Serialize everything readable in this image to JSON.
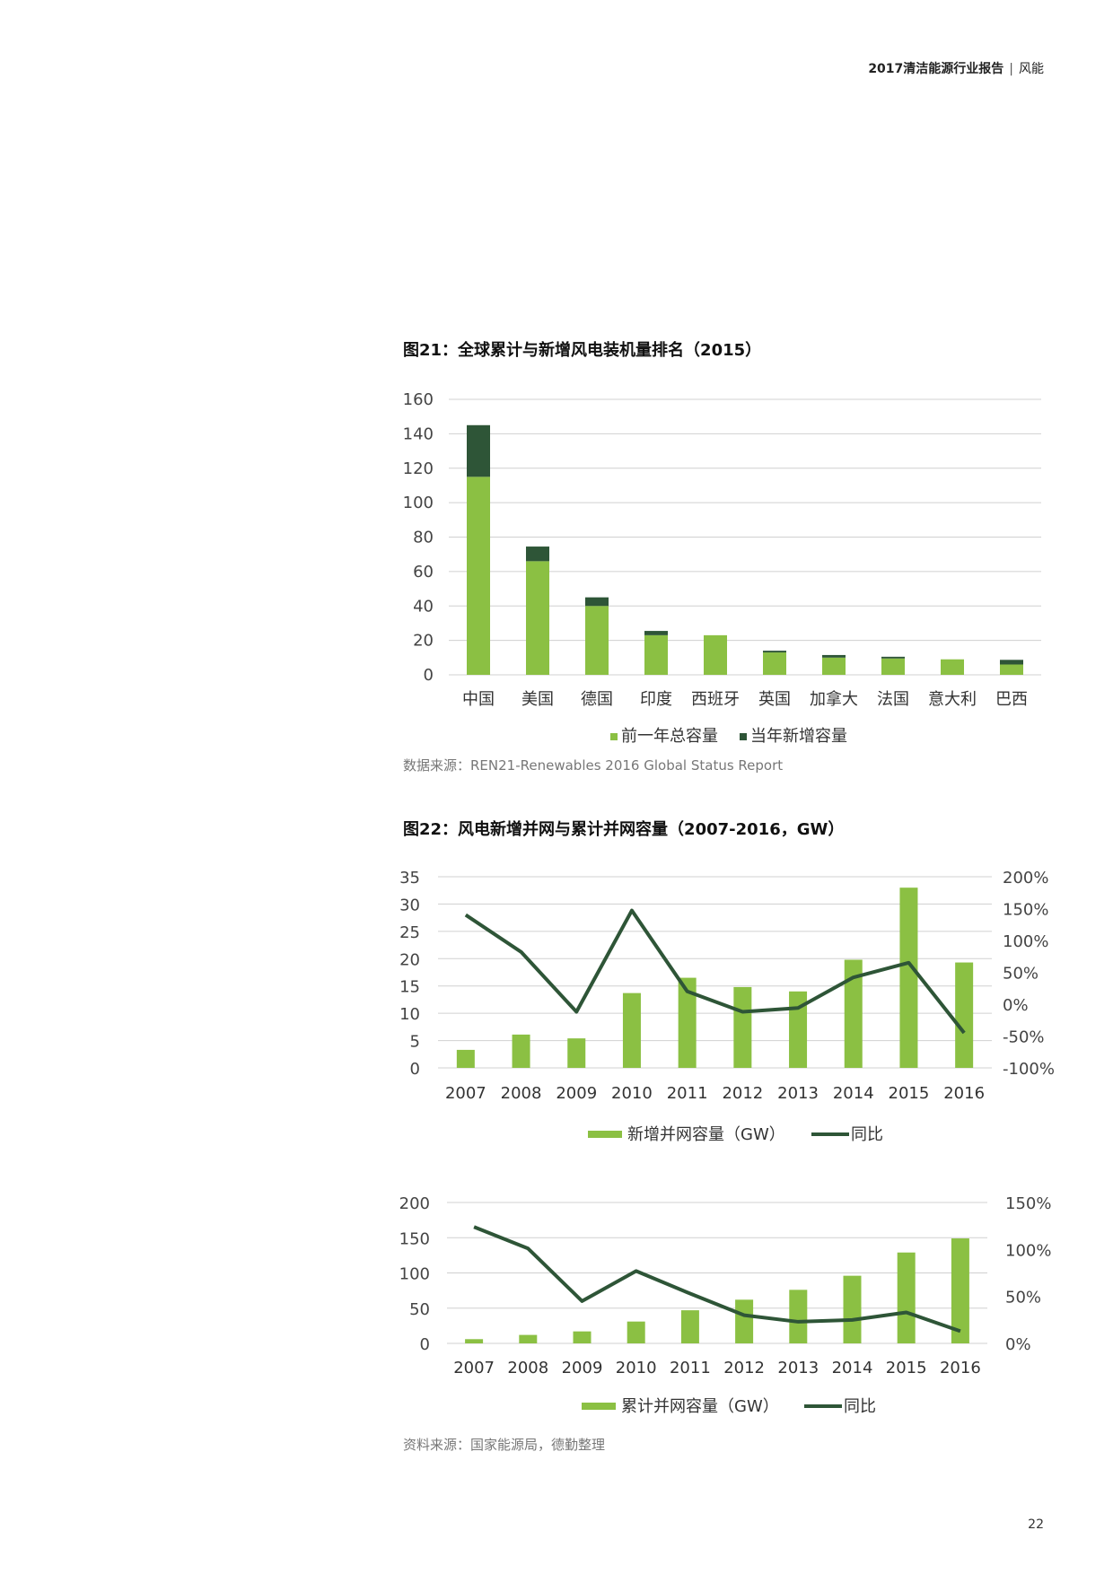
{
  "header": {
    "report_title": "2017清洁能源行业报告",
    "section": "风能"
  },
  "figure21": {
    "title": "图21：全球累计与新增风电装机量排名（2015）",
    "source": "数据来源：REN21-Renewables 2016 Global Status Report"
  },
  "figure22": {
    "title": "图22：风电新增并网与累计并网容量（2007-2016，GW）",
    "source": "资料来源：国家能源局，德勤整理"
  },
  "page_number": "22",
  "colors": {
    "light_green": "#8BC043",
    "dark_green": "#2E5537",
    "grid": "#D0D0D0"
  },
  "chart_data": [
    {
      "type": "bar",
      "stacked": true,
      "categories": [
        "中国",
        "美国",
        "德国",
        "印度",
        "西班牙",
        "英国",
        "加拿大",
        "法国",
        "意大利",
        "巴西"
      ],
      "series": [
        {
          "name": "前一年总容量",
          "values": [
            115,
            66,
            40,
            23,
            23,
            13,
            10,
            9.5,
            9,
            6
          ]
        },
        {
          "name": "当年新增容量",
          "values": [
            30,
            8.5,
            5,
            2.5,
            0,
            1,
            1.5,
            1,
            0,
            2.7
          ]
        }
      ],
      "ylim": [
        0,
        160
      ],
      "yticks": [
        0,
        20,
        40,
        60,
        80,
        100,
        120,
        140,
        160
      ],
      "legend": "bottom",
      "grid": true
    },
    {
      "type": "bar+line",
      "categories": [
        "2007",
        "2008",
        "2009",
        "2010",
        "2011",
        "2012",
        "2013",
        "2014",
        "2015",
        "2016"
      ],
      "series": [
        {
          "name": "新增并网容量（GW）",
          "type": "bar",
          "axis": "left",
          "values": [
            3.3,
            6.1,
            5.4,
            13.7,
            16.5,
            14.8,
            14.0,
            19.8,
            33.0,
            19.3
          ]
        },
        {
          "name": "同比",
          "type": "line",
          "axis": "right",
          "values": [
            140,
            82,
            -12,
            147,
            20,
            -12,
            -6,
            42,
            65,
            -45
          ]
        }
      ],
      "ylim_left": [
        0,
        35
      ],
      "yticks_left": [
        "0",
        "5",
        "10",
        "15",
        "20",
        "25",
        "30",
        "35"
      ],
      "ylim_right": [
        -100,
        200
      ],
      "yticks_right": [
        "-100%",
        "-50%",
        "0%",
        "50%",
        "100%",
        "150%",
        "200%"
      ],
      "legend": "bottom",
      "grid": true
    },
    {
      "type": "bar+line",
      "categories": [
        "2007",
        "2008",
        "2009",
        "2010",
        "2011",
        "2012",
        "2013",
        "2014",
        "2015",
        "2016"
      ],
      "series": [
        {
          "name": "累计并网容量（GW）",
          "type": "bar",
          "axis": "left",
          "values": [
            6,
            12,
            17,
            31,
            47,
            62,
            76,
            96,
            129,
            149
          ]
        },
        {
          "name": "同比",
          "type": "line",
          "axis": "right",
          "values": [
            124,
            101,
            45,
            77,
            53,
            30,
            23,
            25,
            33,
            13
          ]
        }
      ],
      "ylim_left": [
        0,
        200
      ],
      "yticks_left": [
        "0",
        "50",
        "100",
        "150",
        "200"
      ],
      "ylim_right": [
        0,
        150
      ],
      "yticks_right": [
        "0%",
        "50%",
        "100%",
        "150%"
      ],
      "legend": "bottom",
      "grid": true
    }
  ]
}
